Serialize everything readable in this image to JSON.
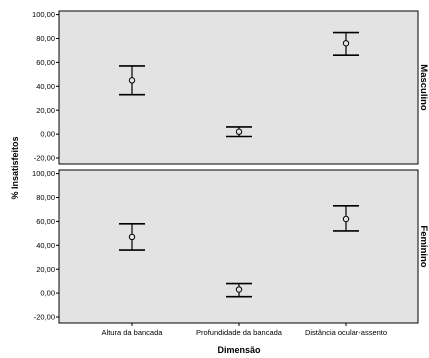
{
  "chart_data": {
    "type": "errorbar",
    "xlabel": "Dimensão",
    "ylabel": "% Insatisfeitos",
    "categories": [
      "Altura da bancada",
      "Profundidade da bancada",
      "Distância ocular-assento"
    ],
    "yticks": [
      "-20,00",
      "0,00",
      "20,00",
      "40,00",
      "60,00",
      "80,00",
      "100,00"
    ],
    "ylim": [
      -25,
      103
    ],
    "grid": false,
    "panel_background": "#e3e3e3",
    "panels": [
      {
        "label": "Masculino",
        "points": [
          {
            "category": "Altura da bancada",
            "mean": 45,
            "lower": 33,
            "upper": 57
          },
          {
            "category": "Profundidade da bancada",
            "mean": 2,
            "lower": -2,
            "upper": 6
          },
          {
            "category": "Distância ocular-assento",
            "mean": 76,
            "lower": 66,
            "upper": 85
          }
        ]
      },
      {
        "label": "Feminino",
        "points": [
          {
            "category": "Altura da bancada",
            "mean": 47,
            "lower": 36,
            "upper": 58
          },
          {
            "category": "Profundidade da bancada",
            "mean": 3,
            "lower": -3,
            "upper": 8
          },
          {
            "category": "Distância ocular-assento",
            "mean": 62,
            "lower": 52,
            "upper": 73
          }
        ]
      }
    ]
  }
}
